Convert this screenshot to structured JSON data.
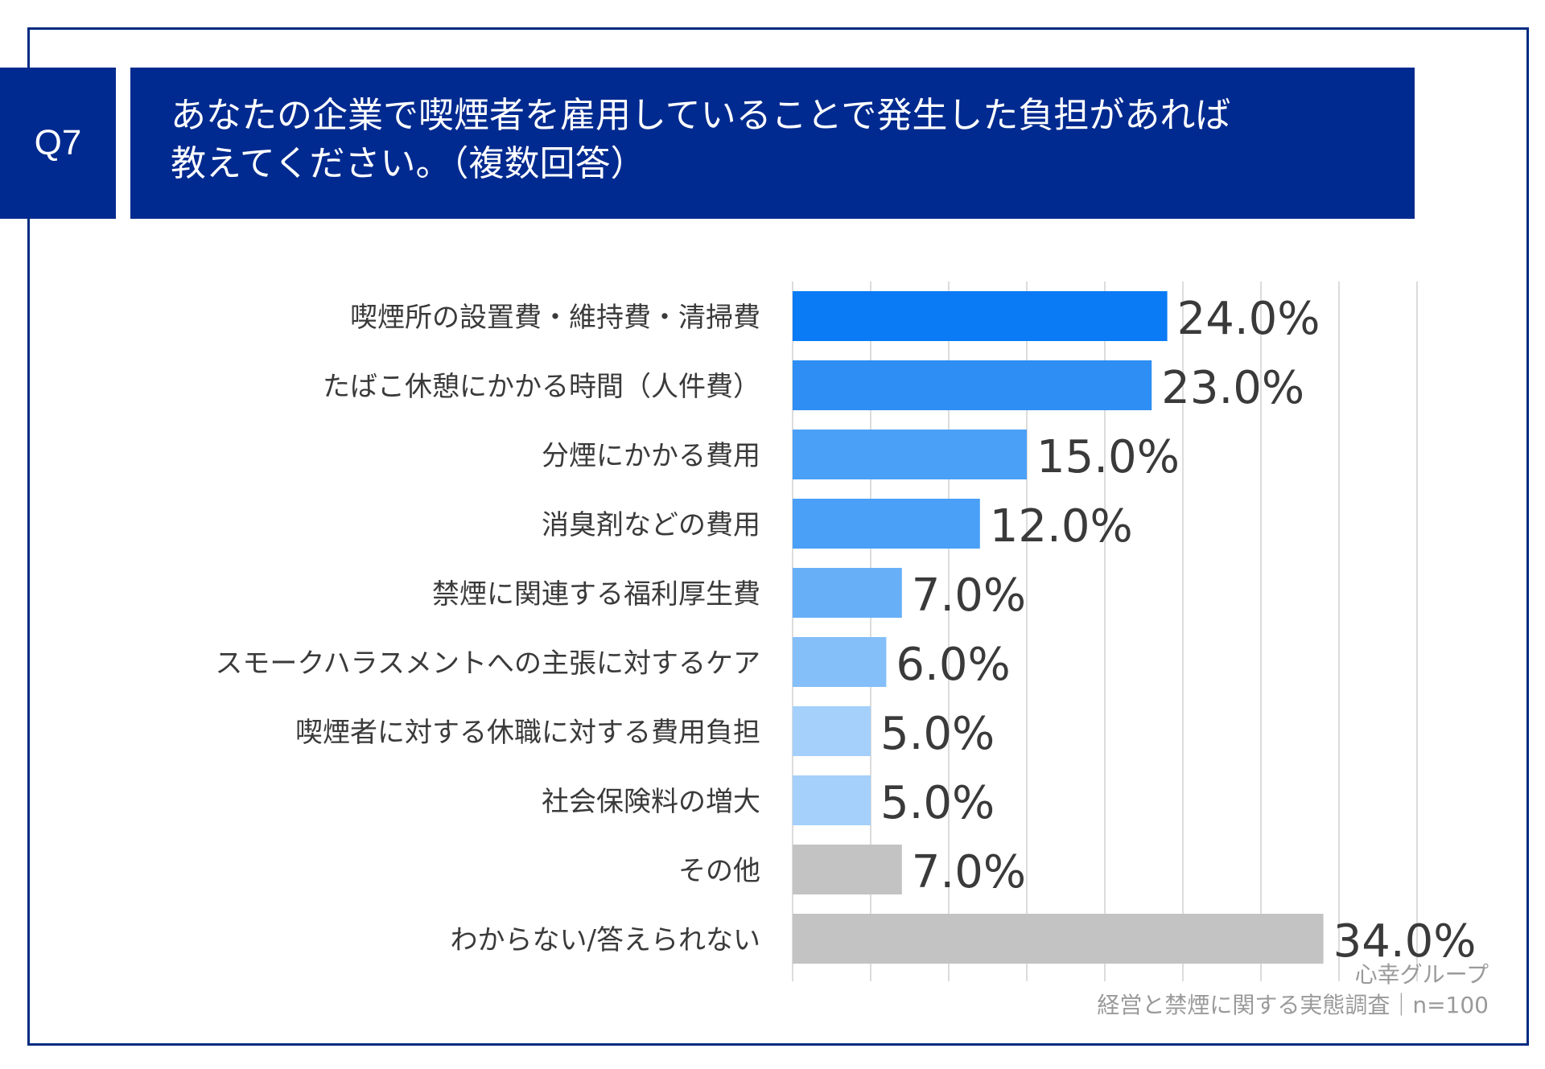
{
  "header": {
    "question_no": "Q7",
    "title_line1": "あなたの企業で喫煙者を雇用していることで発生した負担があれば",
    "title_line2": "教えてください。（複数回答）"
  },
  "footer": {
    "source": "心幸グループ",
    "survey": "経営と禁煙に関する実態調査｜n=100"
  },
  "chart_data": {
    "type": "bar",
    "orientation": "horizontal",
    "categories": [
      "喫煙所の設置費・維持費・清掃費",
      "たばこ休憩にかかる時間（人件費）",
      "分煙にかかる費用",
      "消臭剤などの費用",
      "禁煙に関連する福利厚生費",
      "スモークハラスメントへの主張に対するケア",
      "喫煙者に対する休職に対する費用負担",
      "社会保険料の増大",
      "その他",
      "わからない/答えられない"
    ],
    "values": [
      24.0,
      23.0,
      15.0,
      12.0,
      7.0,
      6.0,
      5.0,
      5.0,
      7.0,
      34.0
    ],
    "value_labels": [
      "24.0%",
      "23.0%",
      "15.0%",
      "12.0%",
      "7.0%",
      "6.0%",
      "5.0%",
      "5.0%",
      "7.0%",
      "34.0%"
    ],
    "bar_colors": [
      "#0a7af5",
      "#2e8ef3",
      "#4aa0f6",
      "#4aa0f6",
      "#67b0f8",
      "#85bff9",
      "#a4d0fb",
      "#a4d0fb",
      "#c3c3c3",
      "#c3c3c3"
    ],
    "xlim": [
      0,
      40
    ],
    "grid": true,
    "xlabel": "",
    "ylabel": ""
  }
}
